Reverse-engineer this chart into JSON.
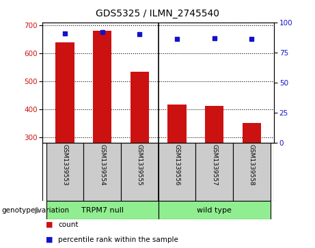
{
  "title": "GDS5325 / ILMN_2745540",
  "samples": [
    "GSM1339553",
    "GSM1339554",
    "GSM1339555",
    "GSM1339556",
    "GSM1339557",
    "GSM1339558"
  ],
  "counts": [
    638,
    680,
    533,
    415,
    410,
    350
  ],
  "percentile_ranks": [
    91,
    92,
    90,
    86,
    87,
    86
  ],
  "ylim_left": [
    280,
    710
  ],
  "ylim_right": [
    0,
    100
  ],
  "yticks_left": [
    300,
    400,
    500,
    600,
    700
  ],
  "yticks_right": [
    0,
    25,
    50,
    75,
    100
  ],
  "bar_color": "#cc1111",
  "dot_color": "#1111cc",
  "group_labels": [
    "TRPM7 null",
    "wild type"
  ],
  "group_color": "#90ee90",
  "genotype_label": "genotype/variation",
  "legend_count": "count",
  "legend_percentile": "percentile rank within the sample",
  "bar_width": 0.5,
  "bg_color": "#cccccc",
  "fig_width": 4.61,
  "fig_height": 3.63,
  "dpi": 100
}
